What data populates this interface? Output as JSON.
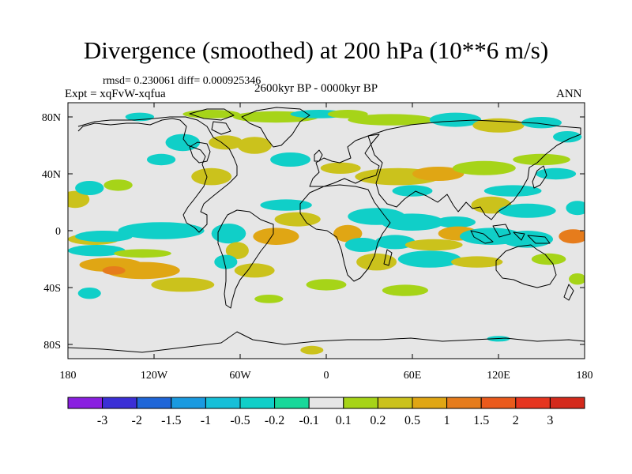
{
  "chart_data": {
    "type": "heatmap",
    "title": "Divergence (smoothed) at 200 hPa (10**6 m/s)",
    "rmsd_label": "rmsd= 0.230061 diff= 0.000925346",
    "experiment_label": "Expt = xqFvW-xqfua",
    "period_label": "2600kyr BP - 0000kyr BP",
    "season_label": "ANN",
    "projection": "cylindrical equidistant",
    "lon_range": [
      -180,
      180
    ],
    "lat_range": [
      -90,
      90
    ],
    "x_ticks": [
      {
        "lon": -180,
        "label": "180"
      },
      {
        "lon": -120,
        "label": "120W"
      },
      {
        "lon": -60,
        "label": "60W"
      },
      {
        "lon": 0,
        "label": "0"
      },
      {
        "lon": 60,
        "label": "60E"
      },
      {
        "lon": 120,
        "label": "120E"
      },
      {
        "lon": 180,
        "label": "180"
      }
    ],
    "y_ticks": [
      {
        "lat": 80,
        "label": "80N"
      },
      {
        "lat": 40,
        "label": "40N"
      },
      {
        "lat": 0,
        "label": "0"
      },
      {
        "lat": -40,
        "label": "40S"
      },
      {
        "lat": -80,
        "label": "80S"
      }
    ],
    "levels": [
      "-3",
      "-2",
      "-1.5",
      "-1",
      "-0.5",
      "-0.2",
      "-0.1",
      "0.1",
      "0.2",
      "0.5",
      "1",
      "1.5",
      "2",
      "3"
    ],
    "colors": [
      "#8a1fe0",
      "#3b2fd6",
      "#1f66d8",
      "#1a9ae0",
      "#16bfd8",
      "#10cfc8",
      "#18d89a",
      "#e6e6e6",
      "#a6d418",
      "#cbc21c",
      "#e0a614",
      "#e67c1c",
      "#ea5a1c",
      "#e6351f",
      "#d42a1c"
    ],
    "anomalies": [
      {
        "lon": -162,
        "lat": -6,
        "rx": 18,
        "ry": 4,
        "value": 0.3
      },
      {
        "lon": -160,
        "lat": -14,
        "rx": 20,
        "ry": 4,
        "value": -0.3
      },
      {
        "lon": -150,
        "lat": -24,
        "rx": 22,
        "ry": 5,
        "value": 0.7
      },
      {
        "lon": -128,
        "lat": -28,
        "rx": 26,
        "ry": 6,
        "value": 0.6
      },
      {
        "lon": -100,
        "lat": -38,
        "rx": 22,
        "ry": 5,
        "value": 0.3
      },
      {
        "lon": -128,
        "lat": -16,
        "rx": 20,
        "ry": 3,
        "value": 0.15
      },
      {
        "lon": -148,
        "lat": -28,
        "rx": 8,
        "ry": 3,
        "value": 1.2
      },
      {
        "lon": -165,
        "lat": -44,
        "rx": 8,
        "ry": 4,
        "value": -0.2
      },
      {
        "lon": -155,
        "lat": -4,
        "rx": 20,
        "ry": 4,
        "value": -0.2
      },
      {
        "lon": -115,
        "lat": 0,
        "rx": 30,
        "ry": 6,
        "value": -0.3
      },
      {
        "lon": -68,
        "lat": -2,
        "rx": 12,
        "ry": 7,
        "value": -0.3
      },
      {
        "lon": -62,
        "lat": -14,
        "rx": 8,
        "ry": 6,
        "value": 0.3
      },
      {
        "lon": -70,
        "lat": -22,
        "rx": 8,
        "ry": 5,
        "value": -0.2
      },
      {
        "lon": -50,
        "lat": -28,
        "rx": 14,
        "ry": 5,
        "value": 0.3
      },
      {
        "lon": -35,
        "lat": -4,
        "rx": 16,
        "ry": 6,
        "value": 0.6
      },
      {
        "lon": -20,
        "lat": 8,
        "rx": 16,
        "ry": 5,
        "value": 0.3
      },
      {
        "lon": -28,
        "lat": 18,
        "rx": 18,
        "ry": 4,
        "value": -0.3
      },
      {
        "lon": -175,
        "lat": 22,
        "rx": 10,
        "ry": 6,
        "value": 0.3
      },
      {
        "lon": -165,
        "lat": 30,
        "rx": 10,
        "ry": 5,
        "value": -0.2
      },
      {
        "lon": -145,
        "lat": 32,
        "rx": 10,
        "ry": 4,
        "value": 0.2
      },
      {
        "lon": -80,
        "lat": 38,
        "rx": 14,
        "ry": 6,
        "value": 0.3
      },
      {
        "lon": -115,
        "lat": 50,
        "rx": 10,
        "ry": 4,
        "value": -0.2
      },
      {
        "lon": -100,
        "lat": 62,
        "rx": 12,
        "ry": 6,
        "value": -0.3
      },
      {
        "lon": -70,
        "lat": 62,
        "rx": 12,
        "ry": 5,
        "value": 0.3
      },
      {
        "lon": -50,
        "lat": 60,
        "rx": 12,
        "ry": 6,
        "value": 0.3
      },
      {
        "lon": -35,
        "lat": 80,
        "rx": 30,
        "ry": 4,
        "value": 0.2
      },
      {
        "lon": -80,
        "lat": 82,
        "rx": 20,
        "ry": 3,
        "value": 0.2
      },
      {
        "lon": -130,
        "lat": 80,
        "rx": 10,
        "ry": 3,
        "value": -0.2
      },
      {
        "lon": -5,
        "lat": 82,
        "rx": 20,
        "ry": 3,
        "value": -0.2
      },
      {
        "lon": -25,
        "lat": 50,
        "rx": 14,
        "ry": 5,
        "value": -0.2
      },
      {
        "lon": 15,
        "lat": 82,
        "rx": 14,
        "ry": 3,
        "value": 0.2
      },
      {
        "lon": 45,
        "lat": 78,
        "rx": 30,
        "ry": 4,
        "value": 0.2
      },
      {
        "lon": 90,
        "lat": 78,
        "rx": 18,
        "ry": 5,
        "value": -0.3
      },
      {
        "lon": 120,
        "lat": 74,
        "rx": 18,
        "ry": 5,
        "value": 0.3
      },
      {
        "lon": 150,
        "lat": 76,
        "rx": 14,
        "ry": 4,
        "value": -0.2
      },
      {
        "lon": 168,
        "lat": 66,
        "rx": 10,
        "ry": 4,
        "value": -0.3
      },
      {
        "lon": 10,
        "lat": 44,
        "rx": 14,
        "ry": 4,
        "value": 0.3
      },
      {
        "lon": 50,
        "lat": 38,
        "rx": 30,
        "ry": 6,
        "value": 0.3
      },
      {
        "lon": 78,
        "lat": 40,
        "rx": 18,
        "ry": 5,
        "value": 0.6
      },
      {
        "lon": 110,
        "lat": 44,
        "rx": 22,
        "ry": 5,
        "value": 0.2
      },
      {
        "lon": 150,
        "lat": 50,
        "rx": 20,
        "ry": 4,
        "value": 0.2
      },
      {
        "lon": 160,
        "lat": 40,
        "rx": 14,
        "ry": 4,
        "value": -0.2
      },
      {
        "lon": 130,
        "lat": 28,
        "rx": 20,
        "ry": 4,
        "value": -0.2
      },
      {
        "lon": 60,
        "lat": 28,
        "rx": 14,
        "ry": 4,
        "value": -0.2
      },
      {
        "lon": 115,
        "lat": 18,
        "rx": 14,
        "ry": 6,
        "value": 0.3
      },
      {
        "lon": 140,
        "lat": 14,
        "rx": 20,
        "ry": 5,
        "value": -0.3
      },
      {
        "lon": 175,
        "lat": 16,
        "rx": 8,
        "ry": 5,
        "value": -0.2
      },
      {
        "lon": 35,
        "lat": 10,
        "rx": 20,
        "ry": 6,
        "value": -0.3
      },
      {
        "lon": 60,
        "lat": 6,
        "rx": 22,
        "ry": 6,
        "value": -0.2
      },
      {
        "lon": 90,
        "lat": 6,
        "rx": 14,
        "ry": 4,
        "value": -0.2
      },
      {
        "lon": 15,
        "lat": -2,
        "rx": 10,
        "ry": 6,
        "value": 0.6
      },
      {
        "lon": 25,
        "lat": -10,
        "rx": 12,
        "ry": 5,
        "value": -0.2
      },
      {
        "lon": 35,
        "lat": -22,
        "rx": 14,
        "ry": 6,
        "value": 0.3
      },
      {
        "lon": 48,
        "lat": -8,
        "rx": 14,
        "ry": 5,
        "value": -0.2
      },
      {
        "lon": 72,
        "lat": -20,
        "rx": 22,
        "ry": 6,
        "value": -0.3
      },
      {
        "lon": 75,
        "lat": -10,
        "rx": 20,
        "ry": 4,
        "value": 0.3
      },
      {
        "lon": 92,
        "lat": -2,
        "rx": 14,
        "ry": 5,
        "value": 0.6
      },
      {
        "lon": 115,
        "lat": -4,
        "rx": 22,
        "ry": 6,
        "value": -0.4
      },
      {
        "lon": 105,
        "lat": -22,
        "rx": 18,
        "ry": 4,
        "value": 0.3
      },
      {
        "lon": 140,
        "lat": -6,
        "rx": 18,
        "ry": 6,
        "value": -0.3
      },
      {
        "lon": 172,
        "lat": -4,
        "rx": 10,
        "ry": 5,
        "value": 1.2
      },
      {
        "lon": 155,
        "lat": -20,
        "rx": 12,
        "ry": 4,
        "value": 0.2
      },
      {
        "lon": 175,
        "lat": -34,
        "rx": 6,
        "ry": 4,
        "value": 0.2
      },
      {
        "lon": 0,
        "lat": -38,
        "rx": 14,
        "ry": 4,
        "value": 0.2
      },
      {
        "lon": 55,
        "lat": -42,
        "rx": 16,
        "ry": 4,
        "value": 0.2
      },
      {
        "lon": -40,
        "lat": -48,
        "rx": 10,
        "ry": 3,
        "value": 0.2
      },
      {
        "lon": -10,
        "lat": -84,
        "rx": 8,
        "ry": 3,
        "value": 0.3
      },
      {
        "lon": 120,
        "lat": -76,
        "rx": 8,
        "ry": 2,
        "value": -0.2
      }
    ],
    "colorbar_labels": [
      "-3",
      "-2",
      "-1.5",
      "-1",
      "-0.5",
      "-0.2",
      "-0.1",
      "0.1",
      "0.2",
      "0.5",
      "1",
      "1.5",
      "2",
      "3"
    ]
  }
}
